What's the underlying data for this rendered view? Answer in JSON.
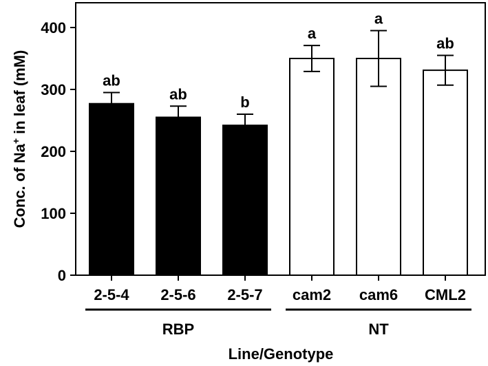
{
  "chart_data": {
    "type": "bar",
    "categories": [
      "2-5-4",
      "2-5-6",
      "2-5-7",
      "cam2",
      "cam6",
      "CML2"
    ],
    "values": [
      277,
      255,
      242,
      350,
      350,
      331
    ],
    "errors": [
      18,
      18,
      18,
      21,
      45,
      24
    ],
    "significance": [
      "ab",
      "ab",
      "b",
      "a",
      "a",
      "ab"
    ],
    "bar_fill": [
      "#000000",
      "#000000",
      "#000000",
      "#ffffff",
      "#ffffff",
      "#ffffff"
    ],
    "groups": [
      {
        "name": "RBP",
        "categories": [
          "2-5-4",
          "2-5-6",
          "2-5-7"
        ]
      },
      {
        "name": "NT",
        "categories": [
          "cam2",
          "cam6",
          "CML2"
        ]
      }
    ],
    "title": "",
    "xlabel": "Line/Genotype",
    "ylabel_prefix": "Conc. of Na",
    "ylabel_sup": "+",
    "ylabel_suffix": " in leaf (mM)",
    "ylim": [
      0,
      440
    ],
    "yticks": [
      0,
      100,
      200,
      300,
      400
    ],
    "grid": false,
    "legend": "none"
  }
}
